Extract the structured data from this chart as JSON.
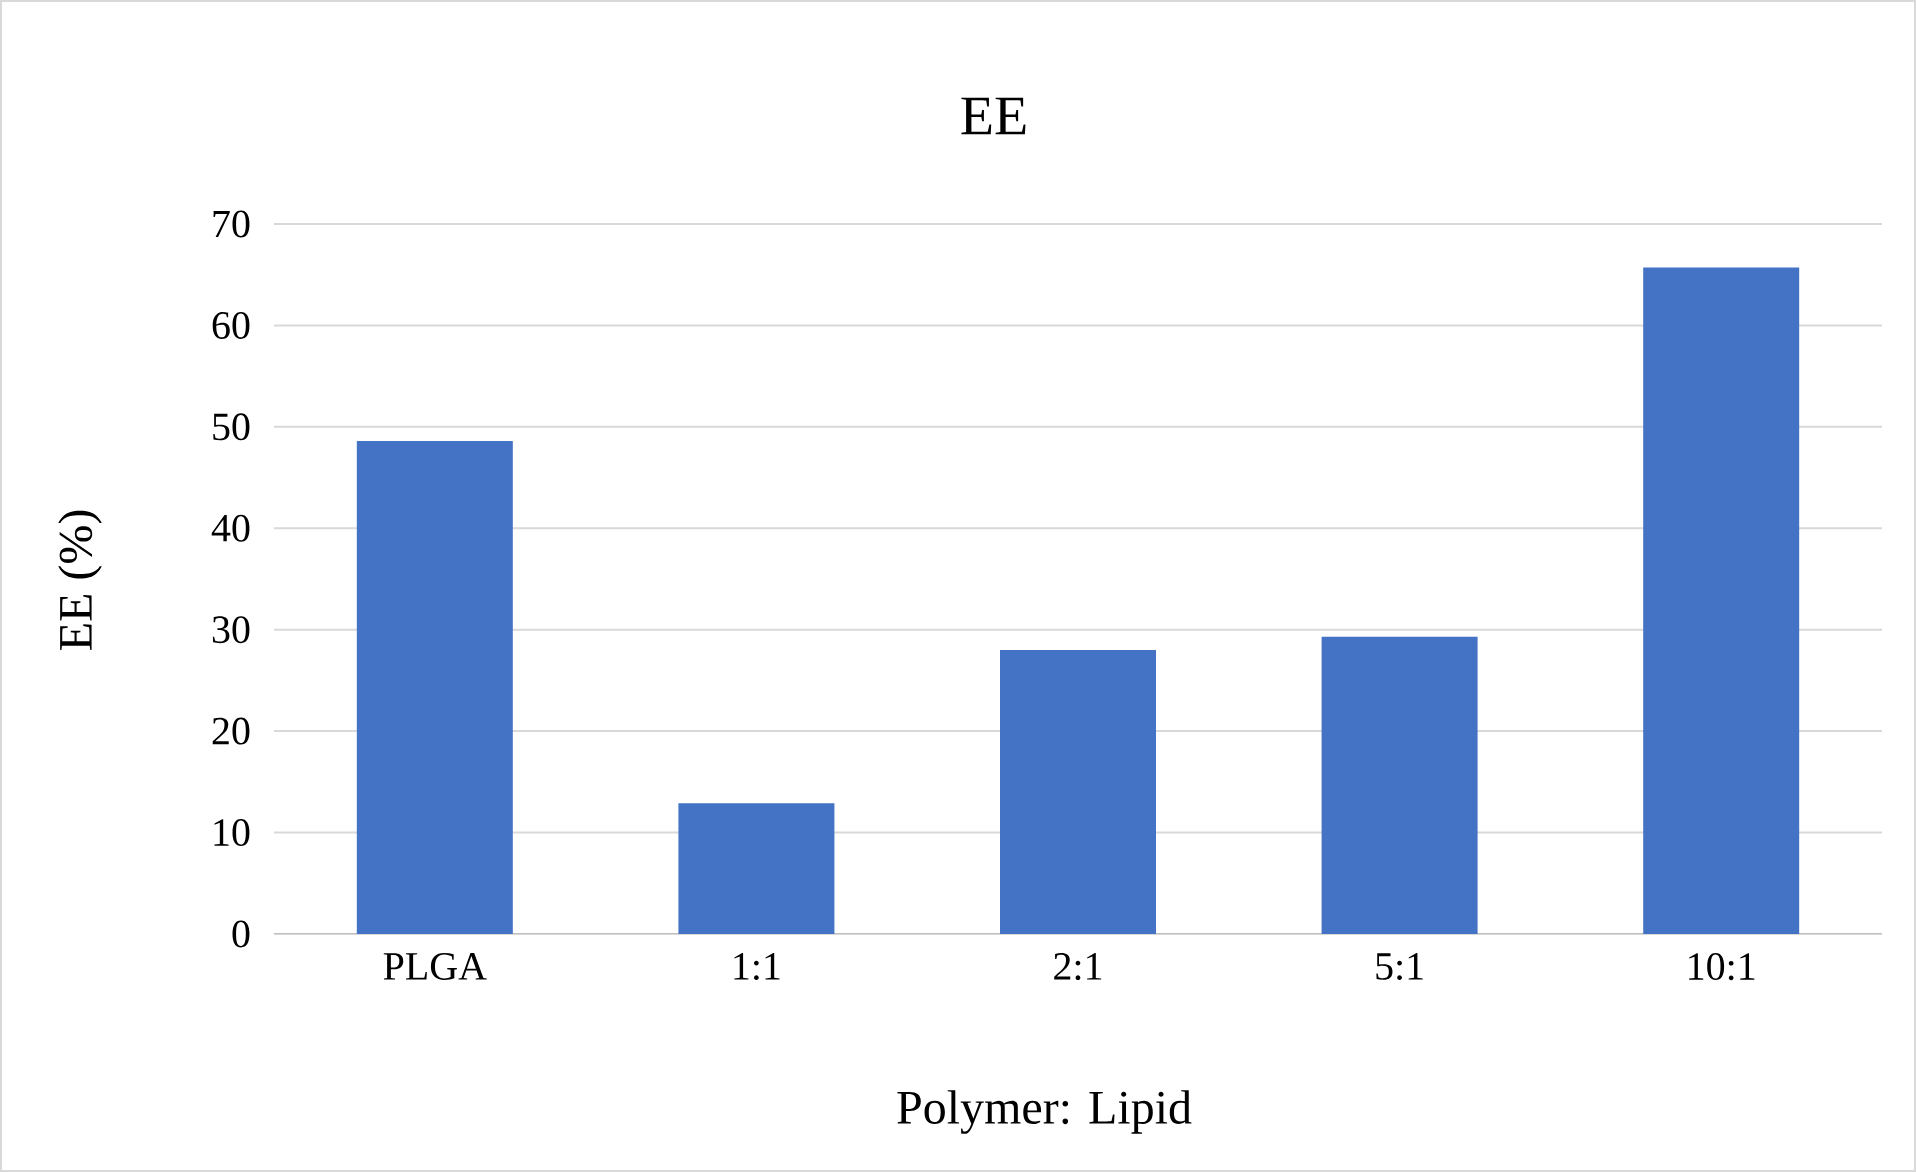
{
  "chart_data": {
    "type": "bar",
    "title": "EE",
    "xlabel": "Polymer: Lipid",
    "ylabel": "EE (%)",
    "categories": [
      "PLGA",
      "1:1",
      "2:1",
      "5:1",
      "10:1"
    ],
    "values": [
      48.6,
      12.9,
      28.0,
      29.3,
      65.7
    ],
    "color": "#4472c4",
    "ylim": [
      0,
      70
    ],
    "yticks": [
      0,
      10,
      20,
      30,
      40,
      50,
      60,
      70
    ],
    "grid": "y"
  }
}
